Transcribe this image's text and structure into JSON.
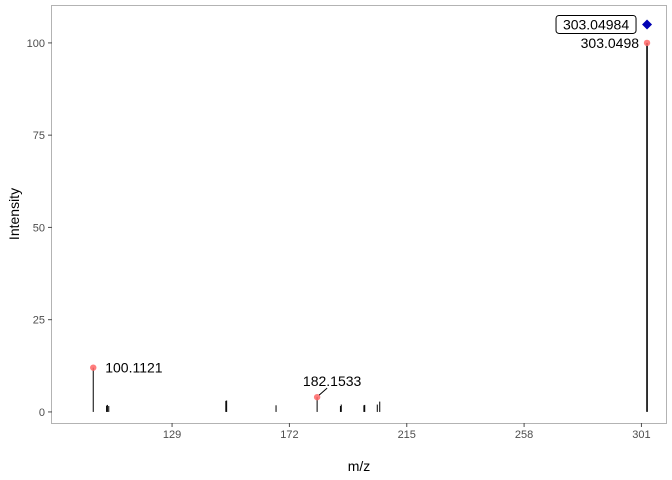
{
  "chart_data": {
    "type": "mass-spectrum",
    "title": "",
    "xlabel": "m/z",
    "ylabel": "Intensity",
    "xlim": [
      85,
      310
    ],
    "ylim": [
      -3,
      110
    ],
    "x_ticks": [
      {
        "value": 129,
        "label": "129"
      },
      {
        "value": 172,
        "label": "172"
      },
      {
        "value": 215,
        "label": "215"
      },
      {
        "value": 258,
        "label": "258"
      },
      {
        "value": 301,
        "label": "301"
      }
    ],
    "y_ticks": [
      {
        "value": 0,
        "label": "0"
      },
      {
        "value": 25,
        "label": "25"
      },
      {
        "value": 50,
        "label": "50"
      },
      {
        "value": 75,
        "label": "75"
      },
      {
        "value": 100,
        "label": "100"
      }
    ],
    "grid": false,
    "peaks": [
      {
        "mz": 100.1121,
        "intensity": 12
      },
      {
        "mz": 105.0,
        "intensity": 1.7
      },
      {
        "mz": 105.3,
        "intensity": 1.9
      },
      {
        "mz": 105.8,
        "intensity": 1.6
      },
      {
        "mz": 148.7,
        "intensity": 3.0
      },
      {
        "mz": 149.0,
        "intensity": 3.1
      },
      {
        "mz": 167.1,
        "intensity": 1.8
      },
      {
        "mz": 182.1533,
        "intensity": 4
      },
      {
        "mz": 190.7,
        "intensity": 1.6
      },
      {
        "mz": 191.0,
        "intensity": 2.0
      },
      {
        "mz": 199.3,
        "intensity": 1.8
      },
      {
        "mz": 199.6,
        "intensity": 1.9
      },
      {
        "mz": 204.2,
        "intensity": 2.0
      },
      {
        "mz": 205.1,
        "intensity": 2.8
      },
      {
        "mz": 303.0498,
        "intensity": 100
      }
    ],
    "highlighted_peaks": [
      {
        "mz": 100.1121,
        "intensity": 12,
        "label": "100.1121",
        "color": "#ff6666"
      },
      {
        "mz": 182.1533,
        "intensity": 4,
        "label": "182.1533",
        "color": "#ff6666"
      },
      {
        "mz": 303.0498,
        "intensity": 100,
        "label": "303.0498",
        "color": "#ff6666"
      }
    ],
    "precursor": {
      "mz": 303.04984,
      "intensity": 105,
      "label": "303.04984",
      "color": "#0000b3"
    }
  }
}
